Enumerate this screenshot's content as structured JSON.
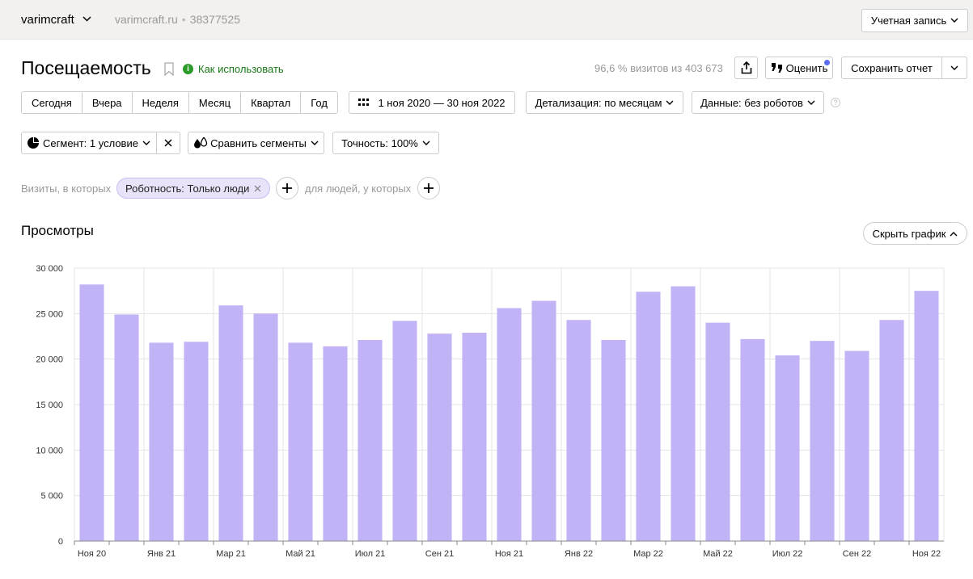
{
  "header": {
    "counter_name": "varimcraft",
    "site_url": "varimcraft.ru",
    "counter_id": "38377525",
    "account_button": "Учетная запись"
  },
  "report": {
    "title": "Посещаемость",
    "howto_link": "Как использовать",
    "visits_info": "96,6 % визитов из 403 673",
    "rate_button": "Оценить",
    "save_button": "Сохранить отчет"
  },
  "period": {
    "buttons": [
      "Сегодня",
      "Вчера",
      "Неделя",
      "Месяц",
      "Квартал",
      "Год"
    ],
    "date_range": "1 ноя 2020 — 30 ноя 2022",
    "detail": "Детализация: по месяцам",
    "data": "Данные: без роботов"
  },
  "segments": {
    "segment": "Сегмент: 1 условие",
    "compare": "Сравнить сегменты",
    "accuracy": "Точность: 100%"
  },
  "filters": {
    "visits_label": "Визиты, в которых",
    "chip": "Роботность: Только люди",
    "people_label": "для людей, у которых"
  },
  "chart_section": {
    "title": "Просмотры",
    "hide_button": "Скрыть график"
  },
  "colors": {
    "bar": "#c2b3f7",
    "grid": "#e5e5e5",
    "accent_green": "#2a9a28"
  },
  "chart_data": {
    "type": "bar",
    "title": "Просмотры",
    "categories": [
      "Ноя 20",
      "Дек 20",
      "Янв 21",
      "Фев 21",
      "Мар 21",
      "Апр 21",
      "Май 21",
      "Июн 21",
      "Июл 21",
      "Авг 21",
      "Сен 21",
      "Окт 21",
      "Ноя 21",
      "Дек 21",
      "Янв 22",
      "Фев 22",
      "Мар 22",
      "Апр 22",
      "Май 22",
      "Июн 22",
      "Июл 22",
      "Авг 22",
      "Сен 22",
      "Окт 22",
      "Ноя 22"
    ],
    "tick_labels": [
      "Ноя 20",
      "",
      "Янв 21",
      "",
      "Мар 21",
      "",
      "Май 21",
      "",
      "Июл 21",
      "",
      "Сен 21",
      "",
      "Ноя 21",
      "",
      "Янв 22",
      "",
      "Мар 22",
      "",
      "Май 22",
      "",
      "Июл 22",
      "",
      "Сен 22",
      "",
      "Ноя 22"
    ],
    "values": [
      28200,
      24900,
      21800,
      21900,
      25900,
      25000,
      21800,
      21400,
      22100,
      24200,
      22800,
      22900,
      25600,
      26400,
      24300,
      22100,
      27400,
      28000,
      24000,
      22200,
      20400,
      22000,
      20900,
      24300,
      27500
    ],
    "ylim": [
      0,
      30000
    ],
    "yticks": [
      0,
      5000,
      10000,
      15000,
      20000,
      25000,
      30000
    ],
    "ytick_labels": [
      "0",
      "5 000",
      "10 000",
      "15 000",
      "20 000",
      "25 000",
      "30 000"
    ],
    "grid": true
  }
}
